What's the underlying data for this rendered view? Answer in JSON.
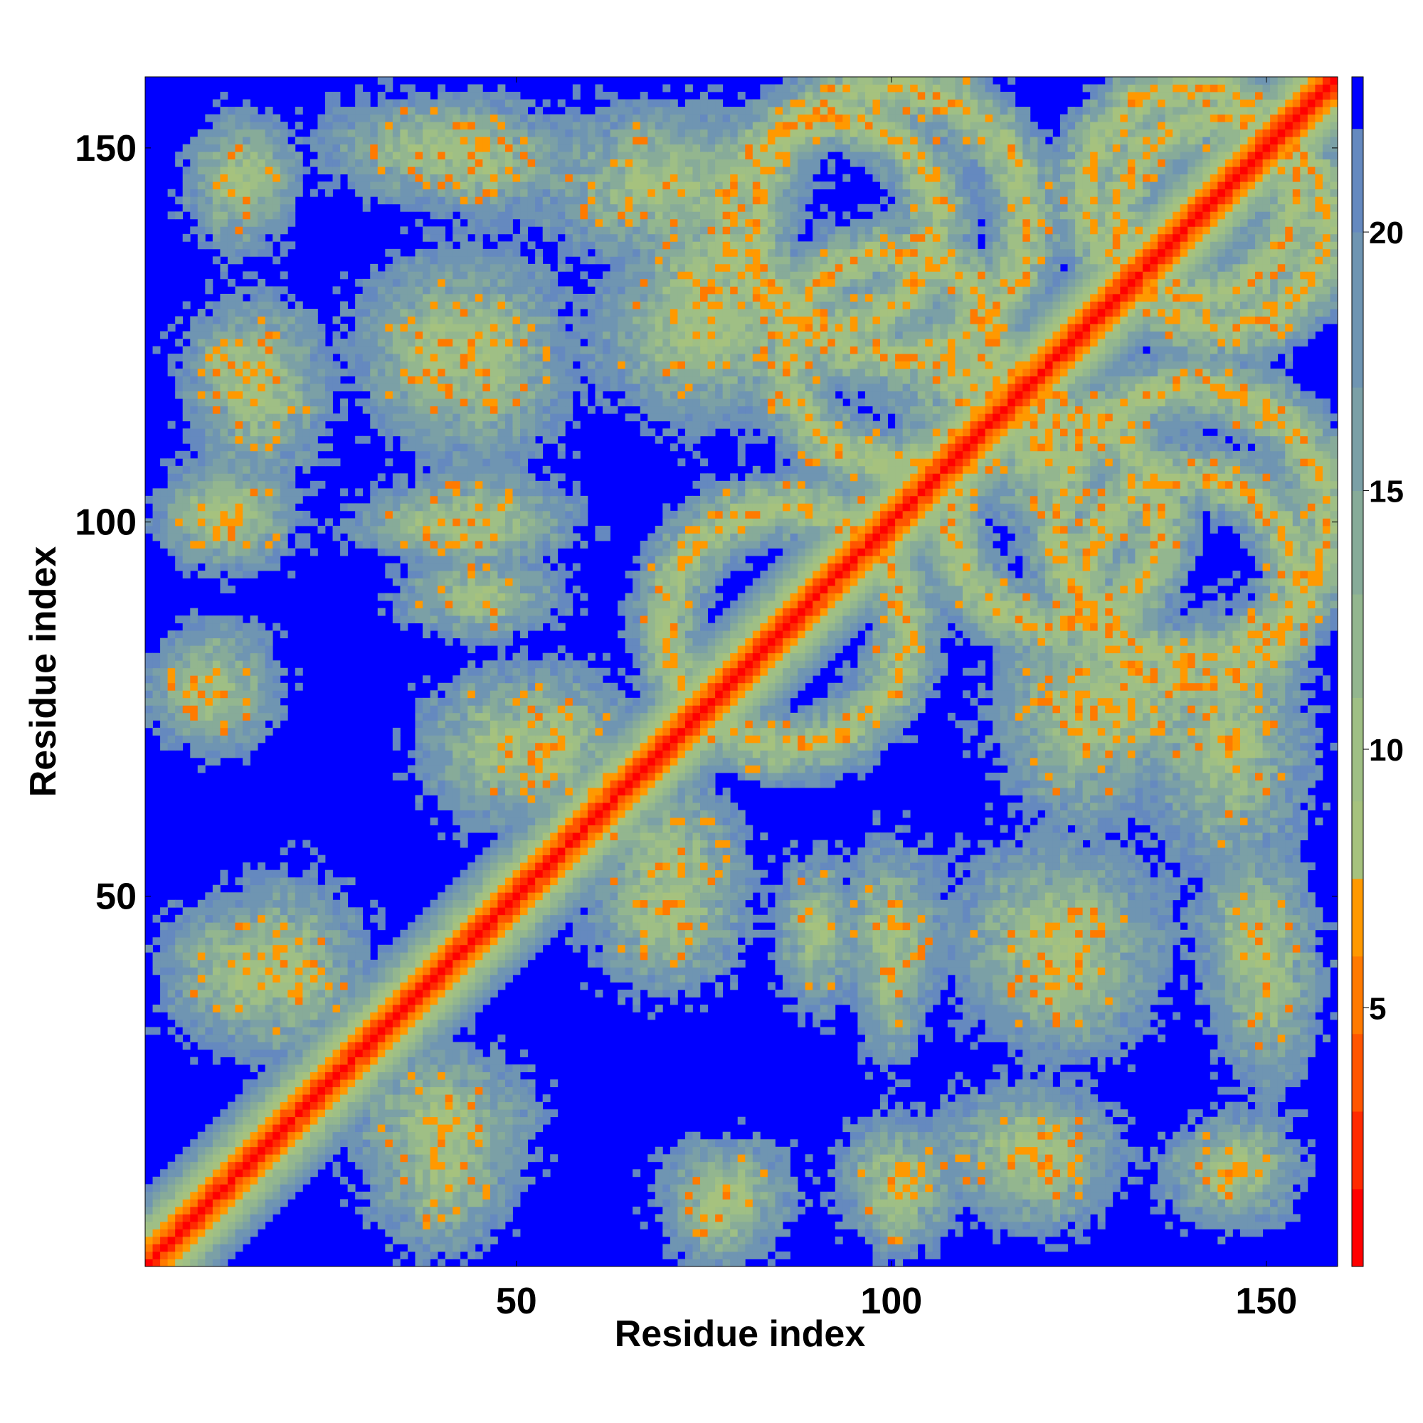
{
  "chart_data": {
    "type": "heatmap",
    "title": "",
    "xlabel": "Residue index",
    "ylabel": "Residue index",
    "xlim": [
      1,
      159
    ],
    "ylim": [
      1,
      159
    ],
    "n_residues": 159,
    "x_ticks": [
      50,
      100,
      150
    ],
    "y_ticks": [
      50,
      100,
      150
    ],
    "x_tick_labels": [
      "50",
      "100",
      "150"
    ],
    "y_tick_labels": [
      "50",
      "100",
      "150"
    ],
    "colorbar": {
      "range": [
        0,
        23
      ],
      "ticks": [
        5,
        10,
        15,
        20
      ],
      "tick_labels": [
        "5",
        "10",
        "15",
        "20"
      ],
      "levels": [
        {
          "from": 0,
          "to": 1.5,
          "color": "#ff0000"
        },
        {
          "from": 1.5,
          "to": 3,
          "color": "#ff2a00"
        },
        {
          "from": 3,
          "to": 4.5,
          "color": "#ff5500"
        },
        {
          "from": 4.5,
          "to": 6,
          "color": "#ff7a00"
        },
        {
          "from": 6,
          "to": 7.5,
          "color": "#ff9900"
        },
        {
          "from": 7.5,
          "to": 9,
          "color": "#a6c27e"
        },
        {
          "from": 9,
          "to": 11,
          "color": "#9fbf85"
        },
        {
          "from": 11,
          "to": 13,
          "color": "#93b68f"
        },
        {
          "from": 13,
          "to": 15,
          "color": "#87ab99"
        },
        {
          "from": 15,
          "to": 17,
          "color": "#7ba0a6"
        },
        {
          "from": 17,
          "to": 20,
          "color": "#6f95b2"
        },
        {
          "from": 20,
          "to": 22,
          "color": "#6589bf"
        },
        {
          "from": 22,
          "to": 23,
          "color": "#0000ff"
        }
      ]
    },
    "background_color": "#0000ff",
    "contact_regions": [
      {
        "kind": "diagonal",
        "half_width": 5
      },
      {
        "kind": "blob",
        "x": 14,
        "y": 147,
        "rx": 8,
        "ry": 8
      },
      {
        "kind": "blob",
        "x": 14,
        "y": 120,
        "rx": 10,
        "ry": 10
      },
      {
        "kind": "blob",
        "x": 10,
        "y": 101,
        "rx": 9,
        "ry": 7
      },
      {
        "kind": "blob",
        "x": 8,
        "y": 77,
        "rx": 9,
        "ry": 7
      },
      {
        "kind": "blob",
        "x": 14,
        "y": 40,
        "rx": 13,
        "ry": 11
      },
      {
        "kind": "blob",
        "x": 40,
        "y": 20,
        "rx": 14,
        "ry": 11
      },
      {
        "kind": "blob",
        "x": 40,
        "y": 123,
        "rx": 13,
        "ry": 14
      },
      {
        "kind": "blob",
        "x": 40,
        "y": 150,
        "rx": 18,
        "ry": 8
      },
      {
        "kind": "blob",
        "x": 70,
        "y": 145,
        "rx": 20,
        "ry": 12
      },
      {
        "kind": "blob",
        "x": 75,
        "y": 125,
        "rx": 18,
        "ry": 12
      },
      {
        "kind": "blob",
        "x": 40,
        "y": 100,
        "rx": 14,
        "ry": 5
      },
      {
        "kind": "blob",
        "x": 45,
        "y": 90,
        "rx": 12,
        "ry": 6
      },
      {
        "kind": "blob",
        "x": 55,
        "y": 70,
        "rx": 12,
        "ry": 12
      },
      {
        "kind": "blob",
        "x": 70,
        "y": 48,
        "rx": 12,
        "ry": 12
      },
      {
        "kind": "ring",
        "x": 86,
        "y": 86,
        "r": 16
      },
      {
        "kind": "ring",
        "x": 100,
        "y": 140,
        "r": 18
      },
      {
        "kind": "ring",
        "x": 144,
        "y": 140,
        "r": 14
      },
      {
        "kind": "ring",
        "x": 140,
        "y": 92,
        "r": 14
      },
      {
        "kind": "ring",
        "x": 122,
        "y": 100,
        "r": 14
      },
      {
        "kind": "blob",
        "x": 130,
        "y": 75,
        "rx": 18,
        "ry": 12
      },
      {
        "kind": "blob",
        "x": 122,
        "y": 45,
        "rx": 16,
        "ry": 14
      },
      {
        "kind": "blob",
        "x": 100,
        "y": 45,
        "rx": 8,
        "ry": 14
      },
      {
        "kind": "blob",
        "x": 148,
        "y": 45,
        "rx": 8,
        "ry": 14
      },
      {
        "kind": "blob",
        "x": 118,
        "y": 16,
        "rx": 14,
        "ry": 10
      },
      {
        "kind": "blob",
        "x": 101,
        "y": 12,
        "rx": 9,
        "ry": 10
      },
      {
        "kind": "blob",
        "x": 78,
        "y": 10,
        "rx": 10,
        "ry": 9
      },
      {
        "kind": "blob",
        "x": 145,
        "y": 13,
        "rx": 10,
        "ry": 8
      },
      {
        "kind": "blob",
        "x": 120,
        "y": 110,
        "rx": 10,
        "ry": 14
      }
    ]
  }
}
